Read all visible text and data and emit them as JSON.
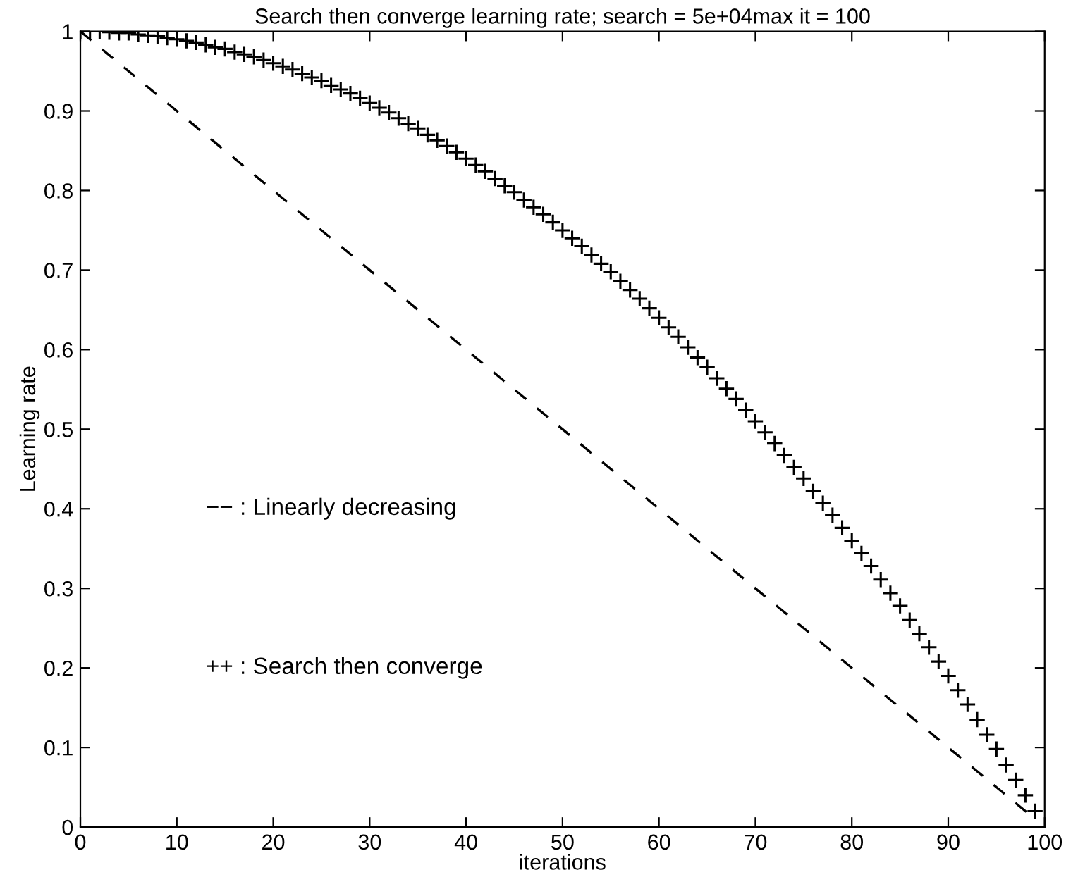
{
  "chart_data": {
    "type": "line",
    "title": "Search then converge learning rate; search = 5e+04max it = 100",
    "xlabel": "iterations",
    "ylabel": "Learning rate",
    "xlim": [
      0,
      100
    ],
    "xticks": [
      0,
      10,
      20,
      30,
      40,
      50,
      60,
      70,
      80,
      90,
      100
    ],
    "ylim": [
      0,
      1
    ],
    "yticks": [
      0,
      0.1,
      0.2,
      0.3,
      0.4,
      0.5,
      0.6,
      0.7,
      0.8,
      0.9,
      1
    ],
    "grid": false,
    "legend": false,
    "annotations": [
      "−− : Linearly decreasing",
      "++ : Search then converge"
    ],
    "series": [
      {
        "line_style": "dashed",
        "marker": "none",
        "color": "#000000",
        "x": [
          0,
          99
        ],
        "values": [
          1,
          0.01
        ]
      },
      {
        "type": "scatter",
        "marker": "cross",
        "color": "#000000",
        "x": [
          0,
          1,
          2,
          3,
          4,
          5,
          6,
          7,
          8,
          9,
          10,
          11,
          12,
          13,
          14,
          15,
          16,
          17,
          18,
          19,
          20,
          21,
          22,
          23,
          24,
          25,
          26,
          27,
          28,
          29,
          30,
          31,
          32,
          33,
          34,
          35,
          36,
          37,
          38,
          39,
          40,
          41,
          42,
          43,
          44,
          45,
          46,
          47,
          48,
          49,
          50,
          51,
          52,
          53,
          54,
          55,
          56,
          57,
          58,
          59,
          60,
          61,
          62,
          63,
          64,
          65,
          66,
          67,
          68,
          69,
          70,
          71,
          72,
          73,
          74,
          75,
          76,
          77,
          78,
          79,
          80,
          81,
          82,
          83,
          84,
          85,
          86,
          87,
          88,
          89,
          90,
          91,
          92,
          93,
          94,
          95,
          96,
          97,
          98,
          99
        ],
        "values": [
          1,
          1.0,
          1.0,
          0.999,
          0.998,
          0.998,
          0.996,
          0.995,
          0.994,
          0.992,
          0.99,
          0.988,
          0.986,
          0.983,
          0.98,
          0.978,
          0.974,
          0.971,
          0.968,
          0.964,
          0.96,
          0.956,
          0.952,
          0.947,
          0.942,
          0.938,
          0.932,
          0.927,
          0.922,
          0.916,
          0.91,
          0.904,
          0.898,
          0.891,
          0.884,
          0.878,
          0.87,
          0.863,
          0.856,
          0.848,
          0.84,
          0.832,
          0.824,
          0.815,
          0.806,
          0.798,
          0.788,
          0.779,
          0.77,
          0.76,
          0.75,
          0.74,
          0.73,
          0.719,
          0.708,
          0.698,
          0.686,
          0.675,
          0.664,
          0.652,
          0.64,
          0.628,
          0.616,
          0.603,
          0.59,
          0.578,
          0.564,
          0.551,
          0.538,
          0.524,
          0.51,
          0.496,
          0.482,
          0.467,
          0.452,
          0.438,
          0.422,
          0.407,
          0.392,
          0.376,
          0.36,
          0.344,
          0.328,
          0.311,
          0.294,
          0.278,
          0.26,
          0.243,
          0.226,
          0.208,
          0.19,
          0.172,
          0.154,
          0.135,
          0.116,
          0.098,
          0.078,
          0.059,
          0.04,
          0.02
        ]
      }
    ]
  }
}
